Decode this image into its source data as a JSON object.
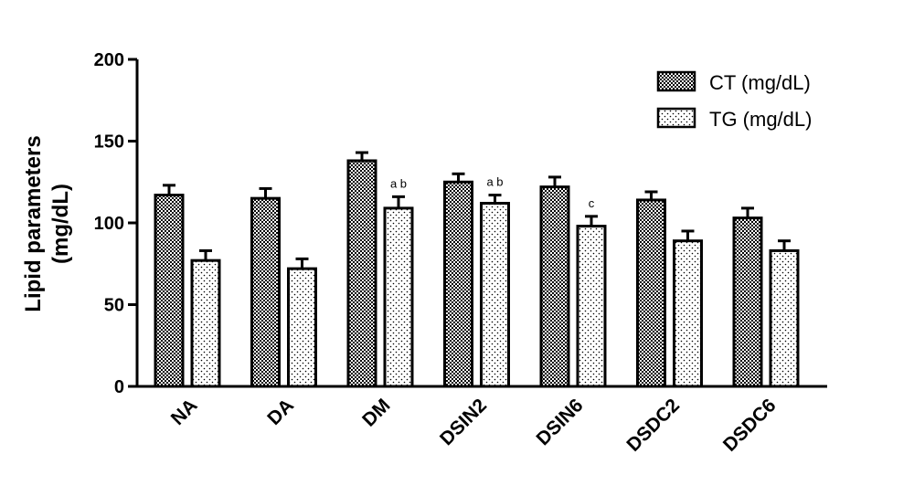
{
  "chart_data": {
    "type": "bar",
    "title": "",
    "xlabel": "",
    "ylabel_lines": [
      "Lipid parameters",
      "(mg/dL)"
    ],
    "ylim": [
      0,
      200
    ],
    "yticks": [
      "0",
      "50",
      "100",
      "150",
      "200"
    ],
    "categories": [
      "NA",
      "DA",
      "DM",
      "DSIN2",
      "DSIN6",
      "DSDC2",
      "DSDC6"
    ],
    "series": [
      {
        "name": "CT (mg/dL)",
        "values": [
          117,
          115,
          138,
          125,
          122,
          114,
          103
        ],
        "errors": [
          6,
          6,
          5,
          5,
          6,
          5,
          6
        ],
        "pattern": "checker"
      },
      {
        "name": "TG (mg/dL)",
        "values": [
          77,
          72,
          109,
          112,
          98,
          89,
          83
        ],
        "errors": [
          6,
          6,
          7,
          5,
          6,
          6,
          6
        ],
        "pattern": "dots"
      }
    ],
    "annotations": [
      {
        "category": "DM",
        "series": 1,
        "text": "a b"
      },
      {
        "category": "DSIN2",
        "series": 1,
        "text": "a b"
      },
      {
        "category": "DSIN6",
        "series": 1,
        "text": "c"
      }
    ],
    "legend_position": "top-right",
    "grid": false
  }
}
